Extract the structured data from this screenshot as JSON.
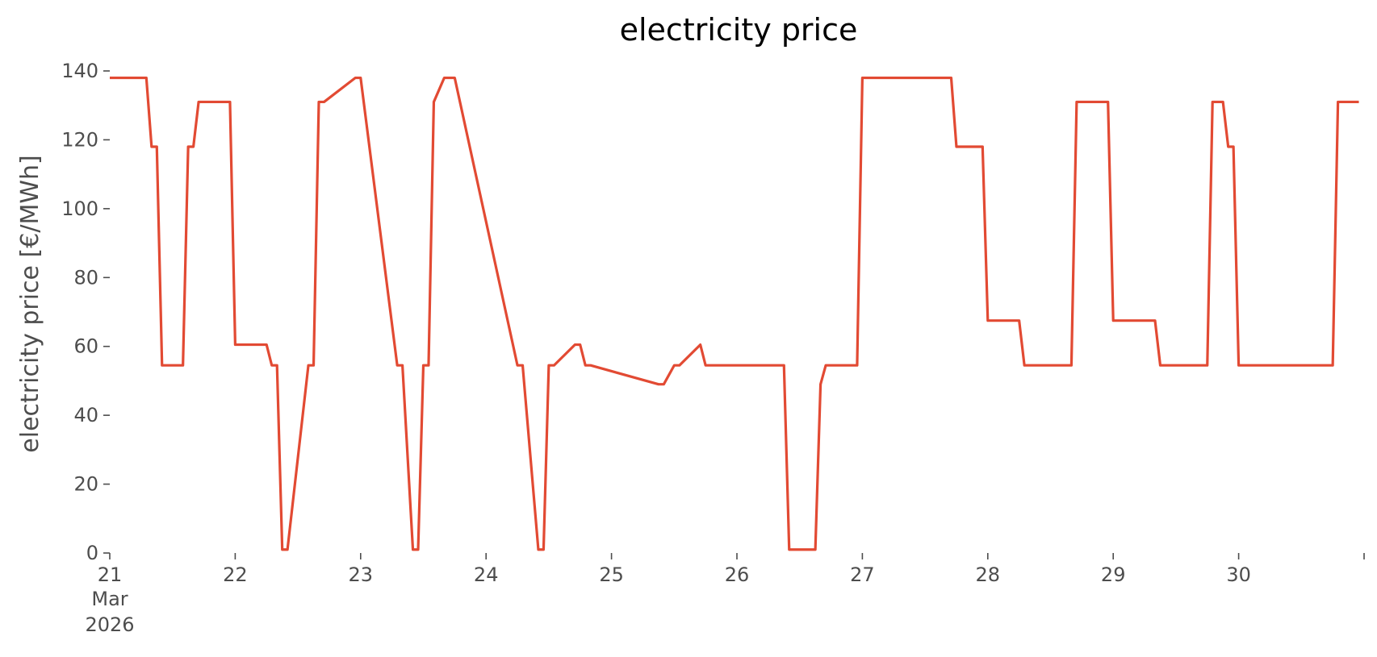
{
  "chart_data": {
    "type": "line",
    "title": "electricity price",
    "xlabel": "",
    "ylabel": "electricity price [€/MWh]",
    "xlim": [
      "2026-03-21T00:00",
      "2026-03-31T00:00"
    ],
    "ylim": [
      0,
      140
    ],
    "yticks": [
      0,
      20,
      40,
      60,
      80,
      100,
      120,
      140
    ],
    "xticks": [
      {
        "label": "21",
        "sub": [
          "Mar",
          "2026"
        ]
      },
      {
        "label": "22"
      },
      {
        "label": "23"
      },
      {
        "label": "24"
      },
      {
        "label": "25"
      },
      {
        "label": "26"
      },
      {
        "label": "27"
      },
      {
        "label": "28"
      },
      {
        "label": "29"
      },
      {
        "label": "30"
      },
      {
        "label": ""
      }
    ],
    "grid": false,
    "color": "#E24A33",
    "series": [
      {
        "x": [
          "2026-03-21T00:00",
          "2026-03-21T07:00",
          "2026-03-21T08:00",
          "2026-03-21T09:00",
          "2026-03-21T10:00",
          "2026-03-21T14:00",
          "2026-03-21T15:00",
          "2026-03-21T16:00",
          "2026-03-21T17:00",
          "2026-03-21T23:00",
          "2026-03-22T00:00",
          "2026-03-22T06:00",
          "2026-03-22T07:00",
          "2026-03-22T08:00",
          "2026-03-22T09:00",
          "2026-03-22T10:00",
          "2026-03-22T14:00",
          "2026-03-22T15:00",
          "2026-03-22T16:00",
          "2026-03-22T17:00",
          "2026-03-22T23:00",
          "2026-03-23T00:00",
          "2026-03-23T07:00",
          "2026-03-23T08:00",
          "2026-03-23T10:00",
          "2026-03-23T11:00",
          "2026-03-23T12:00",
          "2026-03-23T13:00",
          "2026-03-23T14:00",
          "2026-03-23T16:00",
          "2026-03-23T17:00",
          "2026-03-23T18:00",
          "2026-03-24T06:00",
          "2026-03-24T07:00",
          "2026-03-24T10:00",
          "2026-03-24T11:00",
          "2026-03-24T12:00",
          "2026-03-24T13:00",
          "2026-03-24T17:00",
          "2026-03-24T18:00",
          "2026-03-24T19:00",
          "2026-03-24T20:00",
          "2026-03-25T09:00",
          "2026-03-25T10:00",
          "2026-03-25T12:00",
          "2026-03-25T13:00",
          "2026-03-25T17:00",
          "2026-03-25T18:00",
          "2026-03-25T19:00",
          "2026-03-26T09:00",
          "2026-03-26T10:00",
          "2026-03-26T15:00",
          "2026-03-26T16:00",
          "2026-03-26T17:00",
          "2026-03-26T23:00",
          "2026-03-27T00:00",
          "2026-03-27T17:00",
          "2026-03-27T18:00",
          "2026-03-27T23:00",
          "2026-03-28T00:00",
          "2026-03-28T06:00",
          "2026-03-28T07:00",
          "2026-03-28T16:00",
          "2026-03-28T17:00",
          "2026-03-28T23:00",
          "2026-03-29T00:00",
          "2026-03-29T08:00",
          "2026-03-29T09:00",
          "2026-03-29T18:00",
          "2026-03-29T19:00",
          "2026-03-29T21:00",
          "2026-03-29T22:00",
          "2026-03-29T23:00",
          "2026-03-30T00:00",
          "2026-03-30T18:00",
          "2026-03-30T19:00",
          "2026-03-30T23:00"
        ],
        "y": [
          138,
          138,
          118,
          118,
          54.5,
          54.5,
          118,
          118,
          131,
          131,
          60.5,
          60.5,
          54.5,
          54.5,
          1,
          1,
          54.5,
          54.5,
          131,
          131,
          138,
          138,
          54.5,
          54.5,
          1,
          1,
          54.5,
          54.5,
          131,
          138,
          138,
          138,
          54.5,
          54.5,
          1,
          1,
          54.5,
          54.5,
          60.5,
          60.5,
          54.5,
          54.5,
          49,
          49,
          54.5,
          54.5,
          60.5,
          54.5,
          54.5,
          54.5,
          1,
          1,
          49,
          54.5,
          54.5,
          138,
          138,
          118,
          118,
          67.5,
          67.5,
          54.5,
          54.5,
          131,
          131,
          67.5,
          67.5,
          54.5,
          54.5,
          131,
          131,
          118,
          118,
          54.5,
          54.5,
          131,
          131
        ]
      }
    ]
  }
}
